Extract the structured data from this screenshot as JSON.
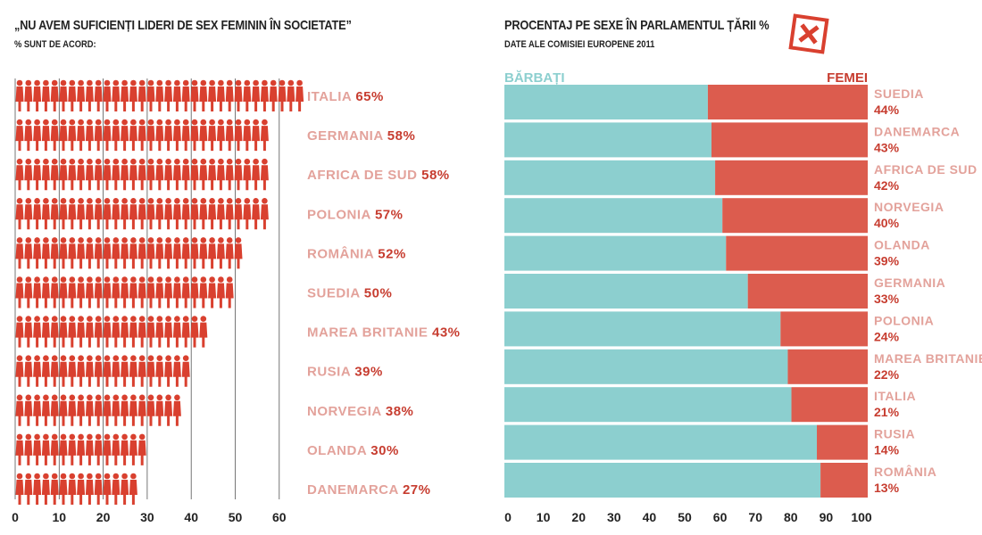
{
  "colors": {
    "men": "#8ccfcf",
    "women": "#dc5c4e",
    "label": "#e3a29b",
    "value": "#c73d30",
    "figure": "#d9402f",
    "text": "#222222"
  },
  "chart_data": [
    {
      "type": "bar",
      "title": "„NU AVEM SUFICIENȚI LIDERI DE SEX FEMININ ÎN SOCIETATE”",
      "subtitle": "% SUNT DE ACORD:",
      "icon": "woman-silhouette-icon",
      "categories": [
        "ITALIA",
        "GERMANIA",
        "AFRICA DE SUD",
        "POLONIA",
        "ROMÂNIA",
        "SUEDIA",
        "MAREA BRITANIE",
        "RUSIA",
        "NORVEGIA",
        "OLANDA",
        "DANEMARCA"
      ],
      "values": [
        65,
        58,
        58,
        57,
        52,
        50,
        43,
        39,
        38,
        30,
        27
      ],
      "value_labels": [
        "65%",
        "58%",
        "58%",
        "57%",
        "52%",
        "50%",
        "43%",
        "39%",
        "38%",
        "30%",
        "27%"
      ],
      "xlim": [
        0,
        65
      ],
      "ticks": [
        "0",
        "10",
        "20",
        "30",
        "40",
        "50",
        "60"
      ],
      "grid": true
    },
    {
      "type": "bar",
      "stacked": true,
      "title": "PROCENTAJ PE SEXE ÎN PARLAMENTUL ȚĂRII %",
      "subtitle": "DATE ALE COMISIEI EUROPENE 2011",
      "icon": "ballot-x-icon",
      "series": [
        {
          "name": "BĂRBAȚI",
          "values": [
            56,
            57,
            58,
            60,
            61,
            67,
            76,
            78,
            79,
            86,
            87
          ]
        },
        {
          "name": "FEMEI",
          "values": [
            44,
            43,
            42,
            40,
            39,
            33,
            24,
            22,
            21,
            14,
            13
          ]
        }
      ],
      "categories": [
        "SUEDIA",
        "DANEMARCA",
        "AFRICA DE SUD",
        "NORVEGIA",
        "OLANDA",
        "GERMANIA",
        "POLONIA",
        "MAREA BRITANIE",
        "ITALIA",
        "RUSIA",
        "ROMÂNIA"
      ],
      "value_labels": [
        "44%",
        "43%",
        "42%",
        "40%",
        "39%",
        "33%",
        "24%",
        "22%",
        "21%",
        "14%",
        "13%"
      ],
      "xlim": [
        0,
        100
      ],
      "ticks": [
        "0",
        "10",
        "20",
        "30",
        "40",
        "50",
        "60",
        "70",
        "80",
        "90",
        "100"
      ]
    }
  ]
}
